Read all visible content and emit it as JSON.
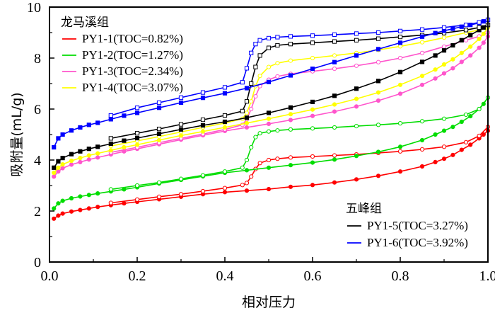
{
  "chart_data": {
    "type": "line",
    "xlabel": "相对压力",
    "ylabel": "吸附量(mL/g)",
    "xlim": [
      0,
      1.0
    ],
    "ylim": [
      0,
      10
    ],
    "xticks": [
      "0.0",
      "0.2",
      "0.4",
      "0.6",
      "0.8",
      "1.0"
    ],
    "yticks": [
      "0",
      "2",
      "4",
      "6",
      "8",
      "10"
    ],
    "grid": false,
    "legend_groups": [
      {
        "title": "龙马溪组",
        "placement": "top-left",
        "series": [
          0,
          1,
          2,
          3
        ]
      },
      {
        "title": "五峰组",
        "placement": "bottom-right",
        "series": [
          4,
          5
        ]
      }
    ],
    "series": [
      {
        "name": "PY1-1(TOC=0.82%)",
        "color": "#ff0000",
        "adsorption": {
          "x": [
            0.01,
            0.02,
            0.03,
            0.05,
            0.07,
            0.09,
            0.11,
            0.14,
            0.17,
            0.2,
            0.25,
            0.3,
            0.35,
            0.4,
            0.45,
            0.5,
            0.55,
            0.6,
            0.65,
            0.7,
            0.75,
            0.8,
            0.85,
            0.88,
            0.9,
            0.92,
            0.94,
            0.96,
            0.98,
            0.99,
            1.0
          ],
          "y": [
            1.7,
            1.82,
            1.9,
            1.98,
            2.04,
            2.1,
            2.16,
            2.23,
            2.3,
            2.36,
            2.46,
            2.56,
            2.66,
            2.74,
            2.8,
            2.86,
            2.95,
            3.02,
            3.12,
            3.24,
            3.38,
            3.55,
            3.75,
            3.92,
            4.05,
            4.2,
            4.4,
            4.6,
            4.85,
            5.0,
            5.15
          ]
        },
        "desorption": {
          "x": [
            0.14,
            0.2,
            0.25,
            0.3,
            0.35,
            0.4,
            0.44,
            0.45,
            0.46,
            0.47,
            0.48,
            0.5,
            0.52,
            0.55,
            0.6,
            0.65,
            0.7,
            0.75,
            0.8,
            0.85,
            0.9,
            0.95,
            0.98,
            1.0
          ],
          "y": [
            2.32,
            2.45,
            2.56,
            2.66,
            2.78,
            2.9,
            3.02,
            3.1,
            3.35,
            3.65,
            3.88,
            4.0,
            4.05,
            4.1,
            4.14,
            4.18,
            4.22,
            4.28,
            4.34,
            4.42,
            4.52,
            4.7,
            4.95,
            5.3
          ]
        }
      },
      {
        "name": "PY1-2(TOC=1.27%)",
        "color": "#00dd00",
        "adsorption": {
          "x": [
            0.01,
            0.02,
            0.03,
            0.05,
            0.07,
            0.09,
            0.11,
            0.14,
            0.17,
            0.2,
            0.25,
            0.3,
            0.35,
            0.4,
            0.45,
            0.5,
            0.55,
            0.6,
            0.65,
            0.7,
            0.75,
            0.8,
            0.85,
            0.88,
            0.9,
            0.92,
            0.94,
            0.96,
            0.98,
            0.99,
            1.0
          ],
          "y": [
            2.1,
            2.3,
            2.4,
            2.5,
            2.57,
            2.63,
            2.69,
            2.77,
            2.85,
            2.93,
            3.08,
            3.22,
            3.36,
            3.5,
            3.6,
            3.7,
            3.8,
            3.9,
            4.02,
            4.16,
            4.32,
            4.52,
            4.78,
            5.0,
            5.15,
            5.3,
            5.5,
            5.72,
            6.0,
            6.2,
            6.45
          ]
        },
        "desorption": {
          "x": [
            0.14,
            0.2,
            0.25,
            0.3,
            0.35,
            0.4,
            0.44,
            0.45,
            0.46,
            0.47,
            0.48,
            0.5,
            0.52,
            0.55,
            0.6,
            0.65,
            0.7,
            0.75,
            0.8,
            0.85,
            0.9,
            0.95,
            0.98,
            1.0
          ],
          "y": [
            2.85,
            3.0,
            3.12,
            3.26,
            3.4,
            3.55,
            3.7,
            4.0,
            4.5,
            4.9,
            5.05,
            5.12,
            5.16,
            5.2,
            5.24,
            5.28,
            5.33,
            5.38,
            5.44,
            5.52,
            5.62,
            5.78,
            6.0,
            6.45
          ]
        }
      },
      {
        "name": "PY1-3(TOC=2.34%)",
        "color": "#ff55cc",
        "adsorption": {
          "x": [
            0.01,
            0.02,
            0.03,
            0.05,
            0.07,
            0.09,
            0.11,
            0.14,
            0.17,
            0.2,
            0.25,
            0.3,
            0.35,
            0.4,
            0.45,
            0.5,
            0.55,
            0.6,
            0.65,
            0.7,
            0.75,
            0.8,
            0.85,
            0.88,
            0.9,
            0.92,
            0.94,
            0.96,
            0.98,
            0.99,
            1.0
          ],
          "y": [
            3.35,
            3.55,
            3.68,
            3.82,
            3.92,
            4.02,
            4.1,
            4.22,
            4.34,
            4.44,
            4.62,
            4.8,
            4.97,
            5.14,
            5.28,
            5.42,
            5.57,
            5.73,
            5.9,
            6.1,
            6.33,
            6.6,
            6.95,
            7.2,
            7.4,
            7.6,
            7.85,
            8.1,
            8.4,
            8.6,
            8.85
          ]
        },
        "desorption": {
          "x": [
            0.14,
            0.2,
            0.25,
            0.3,
            0.35,
            0.4,
            0.44,
            0.45,
            0.46,
            0.47,
            0.48,
            0.5,
            0.52,
            0.55,
            0.6,
            0.65,
            0.7,
            0.75,
            0.8,
            0.85,
            0.9,
            0.95,
            0.98,
            1.0
          ],
          "y": [
            4.3,
            4.5,
            4.68,
            4.85,
            5.02,
            5.2,
            5.38,
            5.6,
            6.0,
            6.5,
            6.9,
            7.15,
            7.28,
            7.38,
            7.48,
            7.58,
            7.7,
            7.84,
            8.0,
            8.2,
            8.45,
            8.7,
            8.85,
            9.0
          ]
        }
      },
      {
        "name": "PY1-4(TOC=3.07%)",
        "color": "#ffff00",
        "adsorption": {
          "x": [
            0.01,
            0.02,
            0.03,
            0.05,
            0.07,
            0.09,
            0.11,
            0.14,
            0.17,
            0.2,
            0.25,
            0.3,
            0.35,
            0.4,
            0.45,
            0.5,
            0.55,
            0.6,
            0.65,
            0.7,
            0.75,
            0.8,
            0.85,
            0.88,
            0.9,
            0.92,
            0.94,
            0.96,
            0.98,
            0.99,
            1.0
          ],
          "y": [
            3.5,
            3.7,
            3.83,
            3.97,
            4.08,
            4.18,
            4.26,
            4.38,
            4.5,
            4.6,
            4.78,
            4.96,
            5.12,
            5.28,
            5.45,
            5.62,
            5.8,
            5.98,
            6.18,
            6.4,
            6.65,
            6.95,
            7.3,
            7.55,
            7.75,
            7.95,
            8.2,
            8.45,
            8.75,
            8.95,
            9.2
          ]
        },
        "desorption": {
          "x": [
            0.14,
            0.2,
            0.25,
            0.3,
            0.35,
            0.4,
            0.44,
            0.45,
            0.46,
            0.47,
            0.48,
            0.5,
            0.52,
            0.55,
            0.6,
            0.65,
            0.7,
            0.75,
            0.8,
            0.85,
            0.9,
            0.95,
            0.98,
            1.0
          ],
          "y": [
            4.55,
            4.75,
            4.92,
            5.1,
            5.28,
            5.45,
            5.62,
            5.85,
            6.3,
            6.9,
            7.3,
            7.65,
            7.8,
            7.9,
            8.0,
            8.1,
            8.2,
            8.32,
            8.46,
            8.62,
            8.8,
            9.0,
            9.1,
            9.2
          ]
        }
      },
      {
        "name": "PY1-5(TOC=3.27%)",
        "color": "#000000",
        "adsorption": {
          "x": [
            0.01,
            0.02,
            0.03,
            0.05,
            0.07,
            0.09,
            0.11,
            0.14,
            0.17,
            0.2,
            0.25,
            0.3,
            0.35,
            0.4,
            0.45,
            0.5,
            0.55,
            0.6,
            0.65,
            0.7,
            0.75,
            0.8,
            0.85,
            0.88,
            0.9,
            0.92,
            0.94,
            0.96,
            0.98,
            0.99,
            1.0
          ],
          "y": [
            3.7,
            3.95,
            4.08,
            4.23,
            4.34,
            4.44,
            4.52,
            4.64,
            4.76,
            4.86,
            5.03,
            5.2,
            5.36,
            5.5,
            5.66,
            5.85,
            6.06,
            6.28,
            6.52,
            6.8,
            7.1,
            7.45,
            7.85,
            8.1,
            8.3,
            8.5,
            8.7,
            8.9,
            9.1,
            9.2,
            9.3
          ]
        },
        "desorption": {
          "x": [
            0.14,
            0.2,
            0.25,
            0.3,
            0.35,
            0.4,
            0.44,
            0.45,
            0.46,
            0.47,
            0.48,
            0.5,
            0.52,
            0.55,
            0.6,
            0.65,
            0.7,
            0.75,
            0.8,
            0.85,
            0.9,
            0.95,
            0.98,
            1.0
          ],
          "y": [
            4.85,
            5.05,
            5.22,
            5.4,
            5.58,
            5.75,
            5.92,
            6.3,
            7.0,
            7.65,
            8.1,
            8.4,
            8.5,
            8.55,
            8.6,
            8.65,
            8.7,
            8.76,
            8.83,
            8.9,
            8.98,
            9.1,
            9.2,
            9.3
          ]
        }
      },
      {
        "name": "PY1-6(TOC=3.92%)",
        "color": "#0000ff",
        "adsorption": {
          "x": [
            0.01,
            0.02,
            0.03,
            0.05,
            0.07,
            0.09,
            0.11,
            0.14,
            0.17,
            0.2,
            0.25,
            0.3,
            0.35,
            0.4,
            0.45,
            0.5,
            0.55,
            0.6,
            0.65,
            0.7,
            0.75,
            0.8,
            0.85,
            0.88,
            0.9,
            0.92,
            0.94,
            0.96,
            0.98,
            0.99,
            1.0
          ],
          "y": [
            4.5,
            4.85,
            5.0,
            5.16,
            5.28,
            5.38,
            5.46,
            5.6,
            5.74,
            5.85,
            6.05,
            6.25,
            6.44,
            6.62,
            6.82,
            7.06,
            7.32,
            7.58,
            7.84,
            8.1,
            8.35,
            8.6,
            8.84,
            8.98,
            9.07,
            9.15,
            9.23,
            9.3,
            9.38,
            9.44,
            9.5
          ]
        },
        "desorption": {
          "x": [
            0.14,
            0.2,
            0.25,
            0.3,
            0.35,
            0.4,
            0.44,
            0.45,
            0.46,
            0.47,
            0.48,
            0.5,
            0.52,
            0.55,
            0.6,
            0.65,
            0.7,
            0.75,
            0.8,
            0.85,
            0.9,
            0.95,
            0.98,
            1.0
          ],
          "y": [
            5.75,
            6.05,
            6.25,
            6.45,
            6.65,
            6.85,
            7.05,
            7.6,
            8.2,
            8.55,
            8.7,
            8.78,
            8.82,
            8.85,
            8.88,
            8.92,
            8.96,
            9.0,
            9.06,
            9.12,
            9.2,
            9.3,
            9.4,
            9.5
          ]
        }
      }
    ]
  }
}
